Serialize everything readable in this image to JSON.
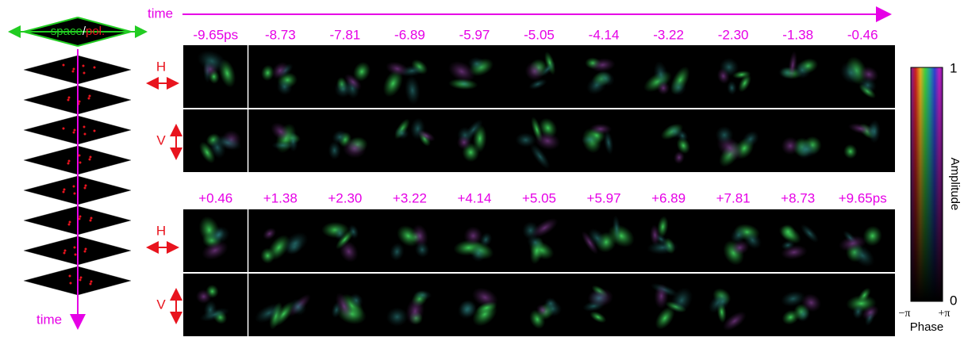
{
  "header": {
    "time_label": "time"
  },
  "stack": {
    "title_space": "space",
    "title_sep": "/",
    "title_pol": "pol.",
    "time_label": "time"
  },
  "rows": [
    {
      "times": [
        "-9.65ps",
        "-8.73",
        "-7.81",
        "-6.89",
        "-5.97",
        "-5.05",
        "-4.14",
        "-3.22",
        "-2.30",
        "-1.38",
        "-0.46"
      ],
      "h_label": "H",
      "v_label": "V"
    },
    {
      "times": [
        "+0.46",
        "+1.38",
        "+2.30",
        "+3.22",
        "+4.14",
        "+5.05",
        "+5.97",
        "+6.89",
        "+7.81",
        "+8.73",
        "+9.65ps"
      ],
      "h_label": "H",
      "v_label": "V"
    }
  ],
  "colorbar": {
    "max_label": "1",
    "min_label": "0",
    "phase_min": "−π",
    "phase_max": "+π",
    "phase_title": "Phase",
    "amplitude_title": "Amplitude"
  }
}
